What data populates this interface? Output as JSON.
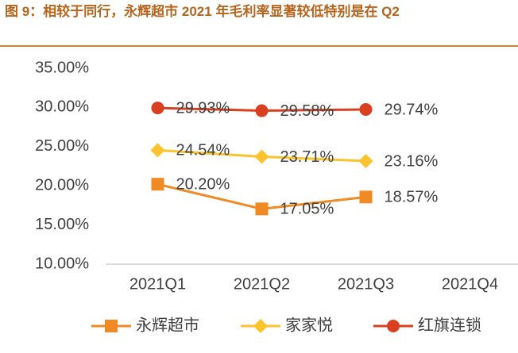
{
  "chart_data": {
    "type": "line",
    "title": "图 9：相较于同行，永辉超市 2021 年毛利率显著较低特别是在 Q2",
    "categories": [
      "2021Q1",
      "2021Q2",
      "2021Q3",
      "2021Q4"
    ],
    "series": [
      {
        "name": "永辉超市",
        "color": "#f08a24",
        "marker": "square",
        "values": [
          20.2,
          17.05,
          18.57,
          null
        ],
        "value_labels": [
          "20.20%",
          "17.05%",
          "18.57%",
          null
        ]
      },
      {
        "name": "家家悦",
        "color": "#fcc32c",
        "marker": "diamond",
        "values": [
          24.54,
          23.71,
          23.16,
          null
        ],
        "value_labels": [
          "24.54%",
          "23.71%",
          "23.16%",
          null
        ]
      },
      {
        "name": "红旗连锁",
        "color": "#d9401f",
        "marker": "circle",
        "values": [
          29.93,
          29.58,
          29.74,
          null
        ],
        "value_labels": [
          "29.93%",
          "29.58%",
          "29.74%",
          null
        ]
      }
    ],
    "ylim": [
      10,
      35
    ],
    "yticks": [
      {
        "value": 10,
        "label": "10.00%"
      },
      {
        "value": 15,
        "label": "15.00%"
      },
      {
        "value": 20,
        "label": "20.00%"
      },
      {
        "value": 25,
        "label": "25.00%"
      },
      {
        "value": 30,
        "label": "30.00%"
      },
      {
        "value": 35,
        "label": "35.00%"
      }
    ],
    "grid": false,
    "legend": "bottom"
  }
}
